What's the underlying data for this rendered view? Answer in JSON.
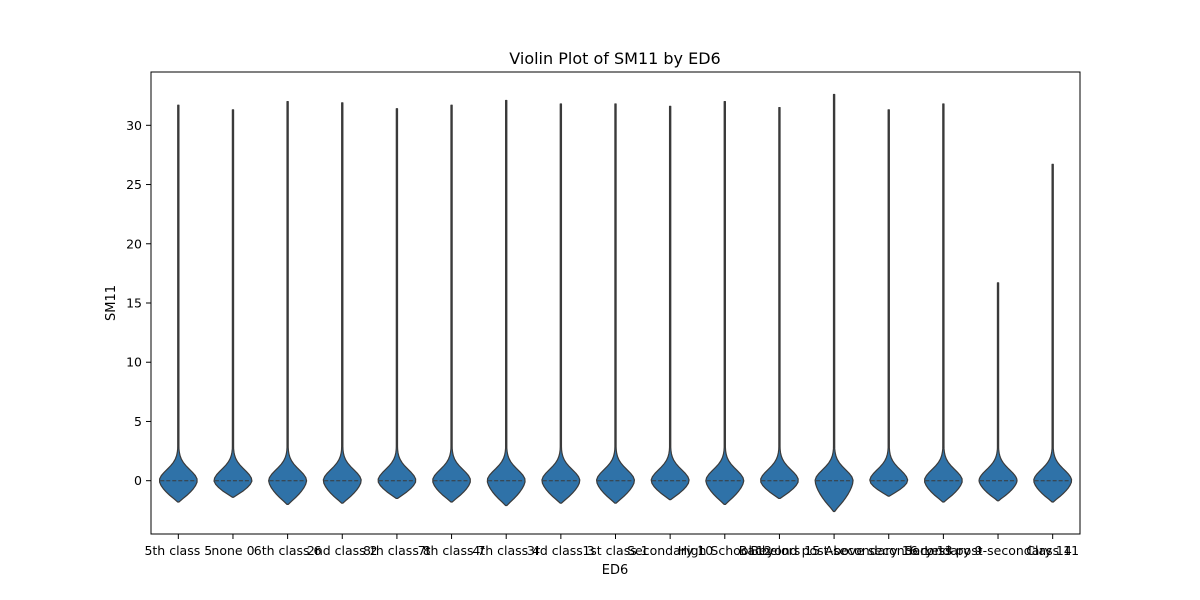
{
  "chart_data": {
    "type": "violin",
    "title": "Violin Plot of SM11 by ED6",
    "xlabel": "ED6",
    "ylabel": "SM11",
    "ylim": [
      -4.5,
      34.5
    ],
    "yticks": [
      0,
      5,
      10,
      15,
      20,
      25,
      30
    ],
    "grid": false,
    "color": "#2f72a8",
    "edge_color": "#3a3a3a",
    "categories": [
      "5th class 5",
      "none 0",
      "6th class 6",
      "2nd class 2",
      "8th class 8",
      "7th class 7",
      "4th class 4",
      "3rd class 3",
      "1st class 1",
      "Secondary 10",
      "High School 12",
      "Bachelors 15",
      "Beyond post-secondary 16",
      "Above secondary 13",
      "Secondary 9",
      "Less post-secondary 14",
      "Class 11"
    ],
    "series": [
      {
        "min": -1.8,
        "max": 31.7,
        "median": 0
      },
      {
        "min": -1.4,
        "max": 31.3,
        "median": 0
      },
      {
        "min": -2.0,
        "max": 32.0,
        "median": 0
      },
      {
        "min": -1.9,
        "max": 31.9,
        "median": 0
      },
      {
        "min": -1.5,
        "max": 31.4,
        "median": 0
      },
      {
        "min": -1.8,
        "max": 31.7,
        "median": 0
      },
      {
        "min": -2.1,
        "max": 32.1,
        "median": 0
      },
      {
        "min": -1.9,
        "max": 31.8,
        "median": 0
      },
      {
        "min": -1.9,
        "max": 31.8,
        "median": 0
      },
      {
        "min": -1.6,
        "max": 31.6,
        "median": 0
      },
      {
        "min": -2.0,
        "max": 32.0,
        "median": 0
      },
      {
        "min": -1.5,
        "max": 31.5,
        "median": 0
      },
      {
        "min": -2.6,
        "max": 32.6,
        "median": 0
      },
      {
        "min": -1.3,
        "max": 31.3,
        "median": 0
      },
      {
        "min": -1.8,
        "max": 31.8,
        "median": 0
      },
      {
        "min": -1.7,
        "max": 16.7,
        "median": 0
      },
      {
        "min": -1.8,
        "max": 26.7,
        "median": 0
      }
    ]
  }
}
